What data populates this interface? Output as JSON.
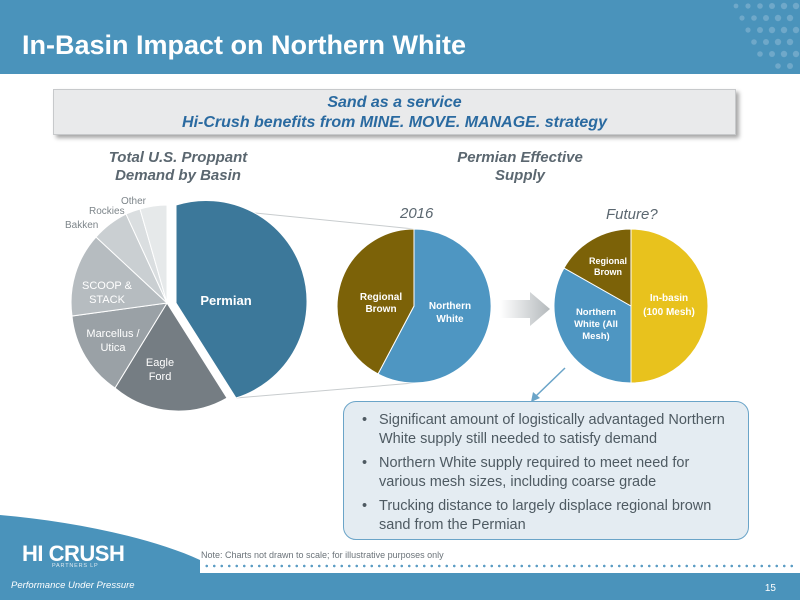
{
  "header": {
    "title": "In-Basin Impact on Northern White"
  },
  "banner": {
    "line1": "Sand as a service",
    "line2": "Hi-Crush benefits from MINE. MOVE. MANAGE. strategy"
  },
  "left_chart": {
    "title_line1": "Total U.S. Proppant",
    "title_line2": "Demand by Basin",
    "slices": [
      {
        "label": "Permian",
        "color": "#3c789a"
      },
      {
        "label_lines": [
          "Eagle",
          "Ford"
        ],
        "color": "#757d83"
      },
      {
        "label_lines": [
          "Marcellus /",
          "Utica"
        ],
        "color": "#9aa1a6"
      },
      {
        "label_lines": [
          "SCOOP &",
          "STACK"
        ],
        "color": "#b6bcc0"
      },
      {
        "label": "Bakken",
        "color": "#cacfd2"
      },
      {
        "label": "Rockies",
        "color": "#dadee0"
      },
      {
        "label": "Other",
        "color": "#e6e9ea"
      }
    ]
  },
  "right_chart": {
    "title_line1": "Permian Effective",
    "title_line2": "Supply",
    "pie_2016": {
      "year_label": "2016",
      "slices": [
        {
          "label_lines": [
            "Northern",
            "White"
          ],
          "color": "#4e96c2"
        },
        {
          "label_lines": [
            "Regional",
            "Brown"
          ],
          "color": "#7c6208"
        }
      ]
    },
    "pie_future": {
      "year_label": "Future?",
      "slices": [
        {
          "label_lines": [
            "In-basin",
            "(100 Mesh)"
          ],
          "color": "#e8c21d"
        },
        {
          "label_lines": [
            "Northern",
            "White (All",
            "Mesh)"
          ],
          "color": "#4e96c2"
        },
        {
          "label_lines": [
            "Regional",
            "Brown"
          ],
          "color": "#7c6208"
        }
      ]
    }
  },
  "callout": {
    "bullets": [
      "Significant amount of logistically advantaged Northern White supply still needed to satisfy demand",
      "Northern White supply required to meet need for various mesh sizes, including coarse grade",
      "Trucking distance to largely displace regional brown sand from the Permian"
    ]
  },
  "footer": {
    "note": "Note: Charts not drawn to scale; for illustrative purposes only",
    "page_number": "15",
    "logo_text": "HI CRUSH",
    "logo_sub": "PARTNERS LP",
    "tagline": "Performance Under Pressure"
  }
}
